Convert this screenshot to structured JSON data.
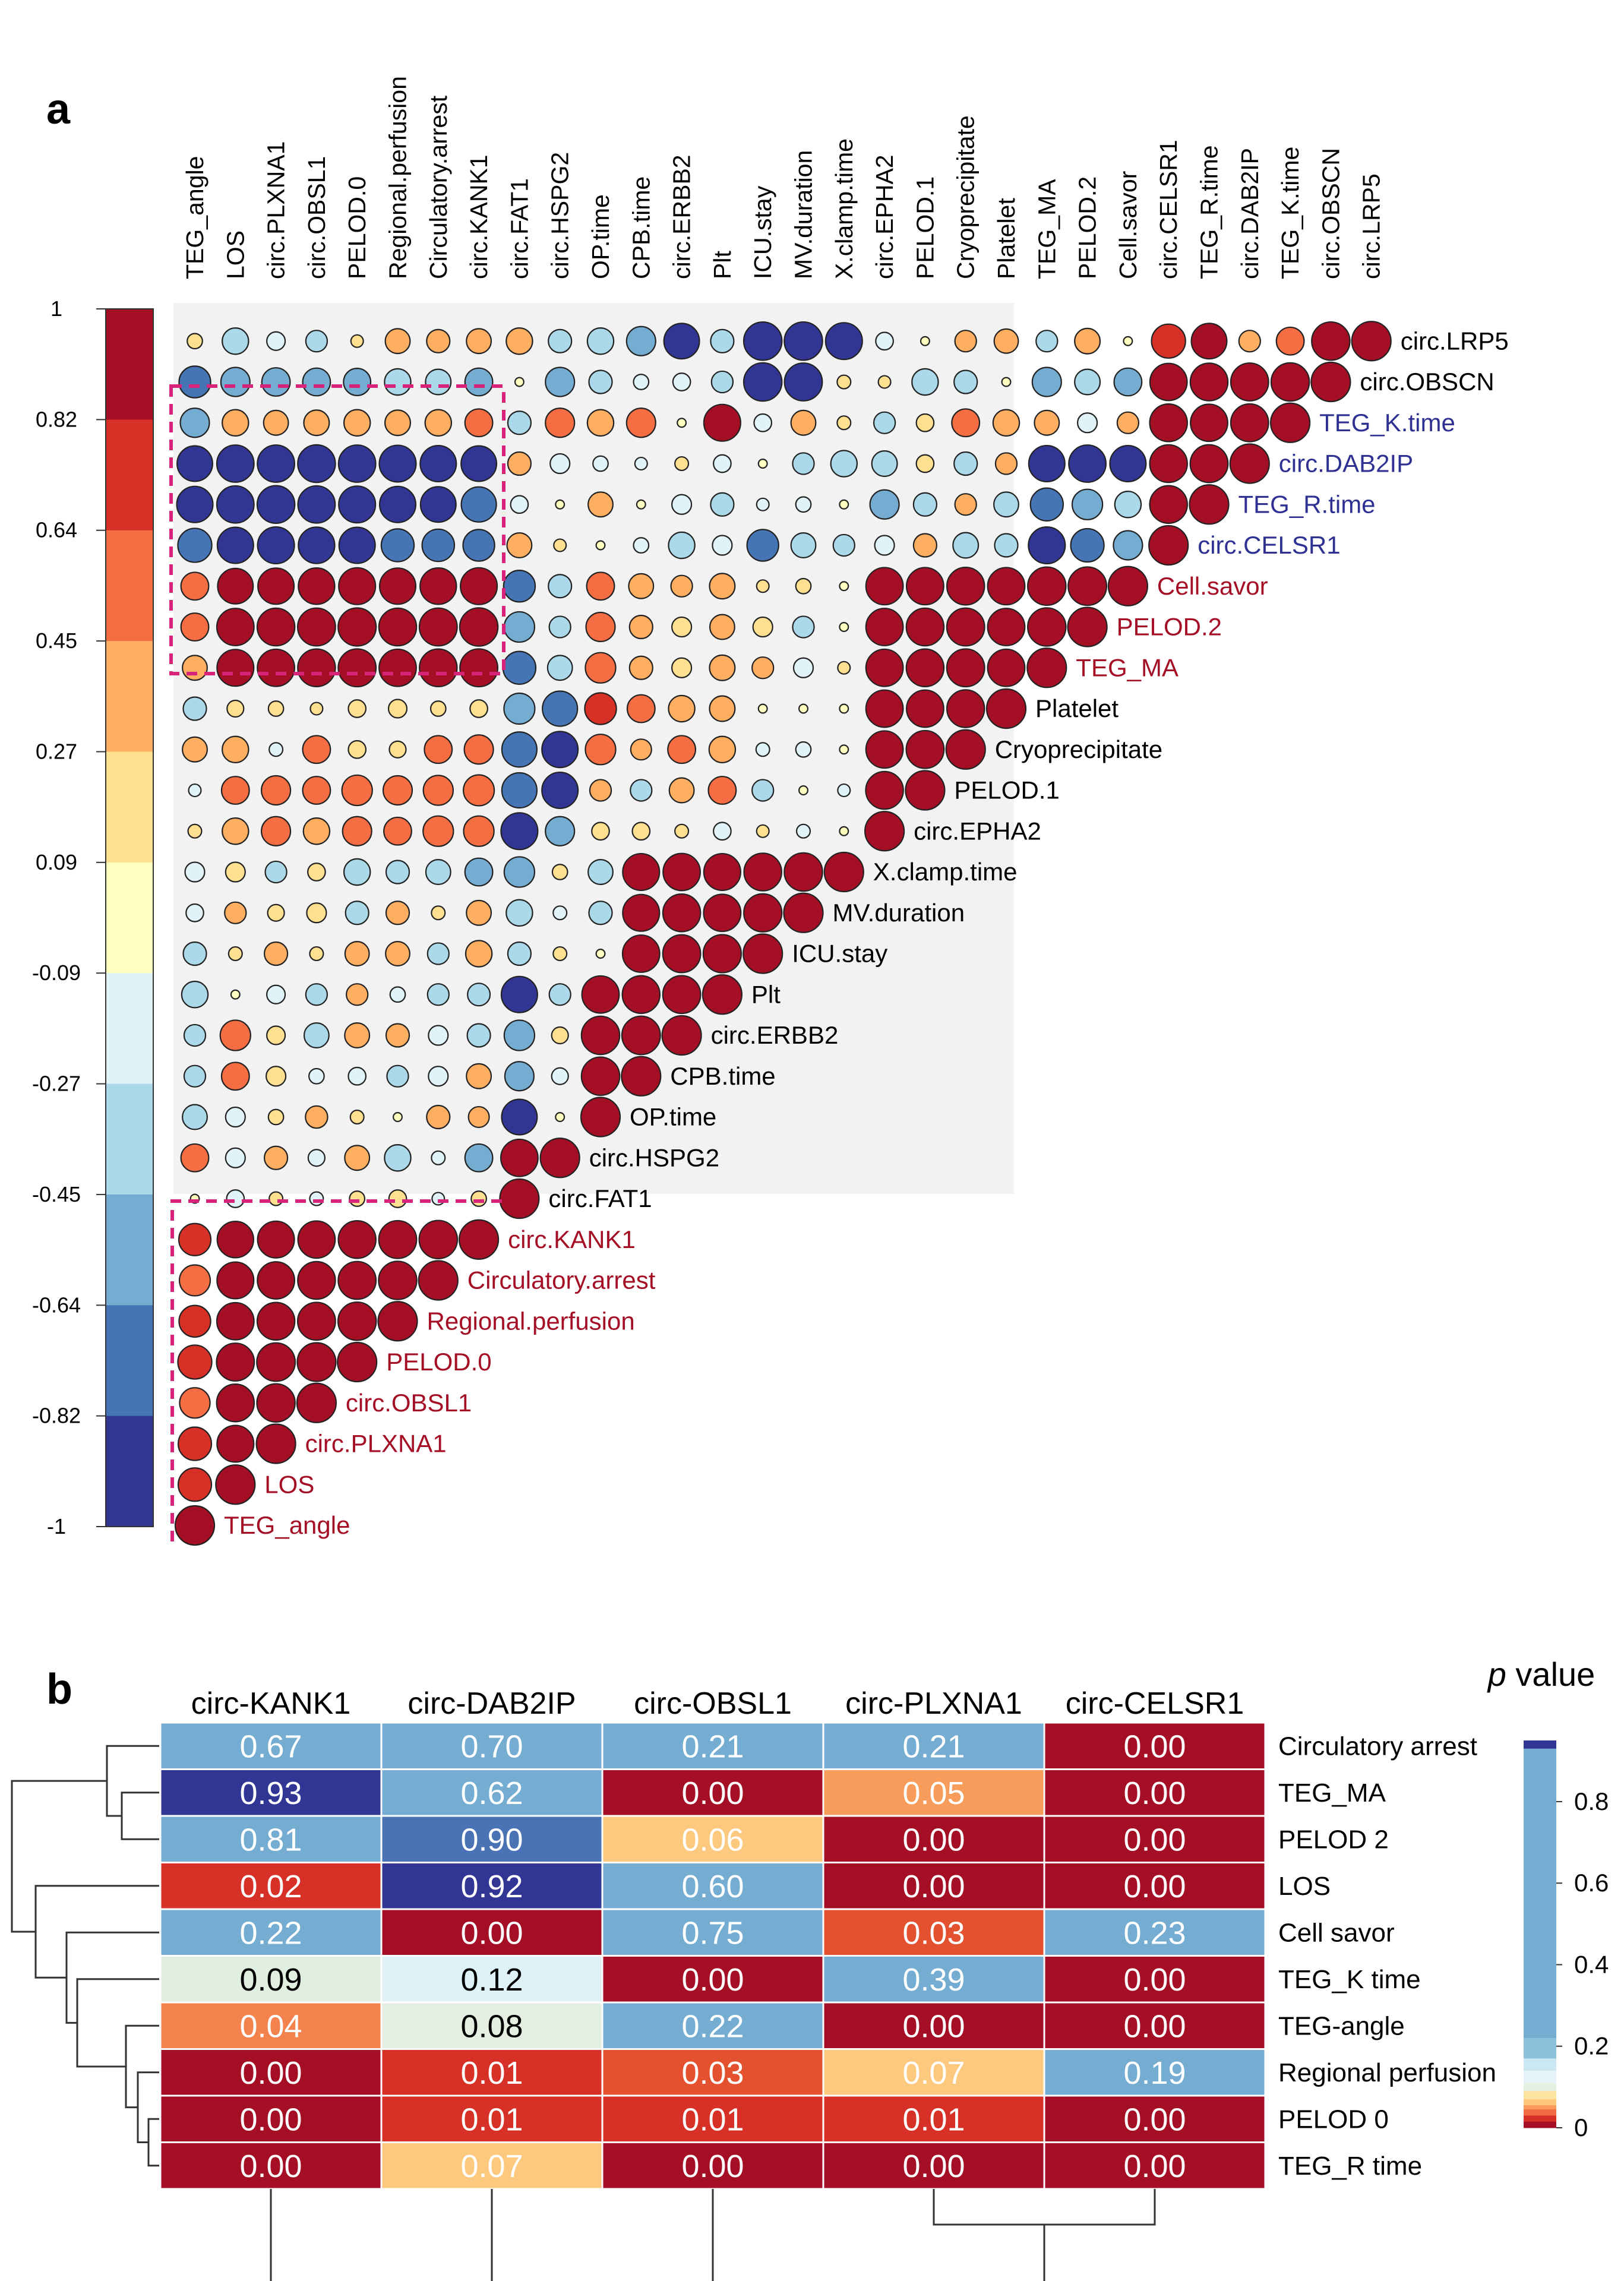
{
  "panel_labels": {
    "a": "a",
    "b": "b"
  },
  "chart_data": [
    {
      "type": "heatmap",
      "panel": "a",
      "title": "",
      "variables": [
        "TEG_angle",
        "LOS",
        "circ.PLXNA1",
        "circ.OBSL1",
        "PELOD.0",
        "Regional.perfusion",
        "Circulatory.arrest",
        "circ.KANK1",
        "circ.FAT1",
        "circ.HSPG2",
        "OP.time",
        "CPB.time",
        "circ.ERBB2",
        "Plt",
        "ICU.stay",
        "MV.duration",
        "X.clamp.time",
        "circ.EPHA2",
        "PELOD.1",
        "Cryoprecipitate",
        "Platelet",
        "TEG_MA",
        "PELOD.2",
        "Cell.savor",
        "circ.CELSR1",
        "TEG_R.time",
        "circ.DAB2IP",
        "TEG_K.time",
        "circ.OBSCN",
        "circ.LRP5"
      ],
      "highlight_labels": {
        "blue": [
          "TEG_K.time",
          "circ.DAB2IP",
          "TEG_R.time",
          "circ.CELSR1"
        ],
        "red": [
          "Cell.savor",
          "PELOD.2",
          "TEG_MA",
          "circ.KANK1",
          "Circulatory.arrest",
          "Regional.perfusion",
          "PELOD.0",
          "circ.OBSL1",
          "circ.PLXNA1",
          "LOS",
          "TEG_angle"
        ]
      },
      "colorbar_ticks": [
        "1",
        "0.82",
        "0.64",
        "0.45",
        "0.27",
        "0.09",
        "-0.09",
        "-0.27",
        "-0.45",
        "-0.64",
        "-0.82",
        "-1"
      ],
      "colorbar_colors": [
        "#a50f26",
        "#d73027",
        "#f46d43",
        "#fdae61",
        "#fee090",
        "#ffffbf",
        "#e0f3f8",
        "#abd9e9",
        "#74add1",
        "#4575b4",
        "#313695"
      ],
      "value_range": [
        -1,
        1
      ],
      "correlations": [
        [
          1
        ],
        [
          0.72,
          1
        ],
        [
          0.72,
          0.88,
          1
        ],
        [
          0.6,
          0.92,
          0.95,
          1
        ],
        [
          0.75,
          0.93,
          0.96,
          0.97,
          1
        ],
        [
          0.65,
          0.9,
          0.92,
          0.93,
          0.95,
          1
        ],
        [
          0.62,
          0.88,
          0.9,
          0.92,
          0.93,
          0.95,
          1
        ],
        [
          0.67,
          0.86,
          0.88,
          0.9,
          0.92,
          0.93,
          0.95,
          1
        ],
        [
          0.05,
          -0.2,
          0.12,
          -0.12,
          0.15,
          0.2,
          -0.1,
          0.15,
          1
        ],
        [
          0.5,
          -0.25,
          0.35,
          -0.18,
          0.4,
          -0.45,
          -0.12,
          -0.5,
          0.9,
          1
        ],
        [
          -0.4,
          -0.25,
          0.15,
          0.32,
          0.12,
          -0.05,
          0.35,
          0.28,
          -0.82,
          0.05,
          1
        ],
        [
          -0.3,
          0.5,
          0.25,
          -0.15,
          -0.2,
          -0.3,
          -0.25,
          0.4,
          -0.55,
          -0.18,
          0.95,
          1
        ],
        [
          -0.3,
          0.6,
          0.22,
          -0.4,
          0.4,
          0.35,
          -0.25,
          -0.35,
          -0.6,
          0.18,
          0.95,
          0.96,
          1
        ],
        [
          -0.45,
          0.05,
          -0.22,
          -0.3,
          0.3,
          -0.15,
          -0.3,
          -0.33,
          -0.85,
          -0.3,
          0.9,
          0.92,
          0.93,
          1
        ],
        [
          -0.35,
          0.12,
          0.35,
          0.12,
          0.38,
          0.38,
          -0.3,
          0.45,
          -0.35,
          0.12,
          0.05,
          0.9,
          0.93,
          0.94,
          1
        ],
        [
          -0.2,
          0.3,
          0.18,
          0.25,
          -0.35,
          0.35,
          0.12,
          0.4,
          -0.45,
          -0.12,
          -0.35,
          0.88,
          0.92,
          0.9,
          0.94,
          1
        ],
        [
          -0.25,
          0.25,
          -0.3,
          0.2,
          -0.45,
          -0.35,
          -0.4,
          -0.5,
          -0.6,
          0.15,
          -0.4,
          0.88,
          0.9,
          0.88,
          0.92,
          0.95,
          1
        ],
        [
          0.12,
          0.45,
          0.55,
          0.45,
          0.55,
          0.5,
          0.6,
          0.6,
          -0.88,
          -0.55,
          0.2,
          0.2,
          0.12,
          -0.2,
          0.1,
          -0.12,
          0.05,
          1
        ],
        [
          -0.1,
          0.5,
          0.55,
          0.5,
          0.6,
          0.55,
          0.58,
          0.62,
          -0.8,
          -0.85,
          0.3,
          -0.3,
          0.4,
          0.5,
          -0.3,
          0.05,
          -0.1,
          0.92,
          1
        ],
        [
          0.4,
          0.45,
          -0.12,
          0.5,
          0.2,
          0.18,
          0.5,
          0.55,
          -0.8,
          -0.85,
          0.6,
          0.28,
          0.5,
          0.45,
          -0.12,
          -0.15,
          0.05,
          0.9,
          0.93,
          1
        ],
        [
          -0.35,
          0.18,
          0.15,
          0.1,
          0.2,
          0.22,
          0.15,
          0.2,
          -0.62,
          -0.8,
          0.65,
          0.5,
          0.45,
          0.42,
          0.05,
          -0.05,
          0.05,
          0.9,
          0.9,
          0.92,
          1
        ],
        [
          0.4,
          0.88,
          0.9,
          0.92,
          0.93,
          0.9,
          0.92,
          0.93,
          -0.7,
          -0.4,
          0.6,
          0.35,
          0.25,
          0.42,
          0.3,
          -0.25,
          0.1,
          0.9,
          0.92,
          0.93,
          0.9,
          1
        ],
        [
          0.5,
          0.9,
          0.92,
          0.93,
          0.94,
          0.92,
          0.93,
          0.95,
          -0.6,
          -0.3,
          0.55,
          0.35,
          0.25,
          0.4,
          0.25,
          -0.3,
          0.05,
          0.9,
          0.92,
          0.93,
          0.9,
          0.95,
          1
        ],
        [
          0.5,
          0.82,
          0.85,
          0.86,
          0.88,
          0.85,
          0.86,
          0.88,
          -0.65,
          -0.35,
          0.5,
          0.4,
          0.3,
          0.42,
          0.1,
          0.15,
          0.05,
          0.9,
          0.9,
          0.92,
          0.9,
          0.95,
          0.96,
          1
        ],
        [
          -0.75,
          -0.85,
          -0.88,
          -0.86,
          -0.85,
          -0.7,
          -0.68,
          -0.65,
          0.4,
          0.1,
          0.05,
          -0.15,
          -0.45,
          -0.25,
          -0.65,
          -0.4,
          -0.3,
          -0.25,
          0.35,
          -0.42,
          -0.35,
          -0.88,
          -0.72,
          -0.55,
          1
        ],
        [
          -0.85,
          -0.9,
          -0.92,
          -0.9,
          -0.88,
          -0.85,
          -0.82,
          -0.8,
          -0.2,
          -0.05,
          0.4,
          0.05,
          -0.25,
          -0.35,
          -0.1,
          -0.15,
          0.05,
          -0.55,
          -0.35,
          0.3,
          -0.4,
          -0.7,
          -0.6,
          -0.45,
          0.92,
          1
        ],
        [
          -0.82,
          -0.9,
          -0.9,
          -0.92,
          -0.9,
          -0.88,
          -0.85,
          -0.82,
          0.35,
          -0.25,
          -0.15,
          -0.1,
          0.12,
          -0.2,
          -0.05,
          -0.3,
          -0.45,
          -0.42,
          0.2,
          -0.35,
          0.3,
          -0.85,
          -0.9,
          -0.85,
          0.92,
          0.93,
          1
        ],
        [
          -0.55,
          0.45,
          0.4,
          0.42,
          0.45,
          0.42,
          0.45,
          0.5,
          -0.35,
          0.55,
          0.45,
          0.55,
          0.05,
          0.88,
          -0.2,
          0.4,
          0.12,
          -0.3,
          0.2,
          0.5,
          0.45,
          0.4,
          -0.25,
          0.3,
          0.92,
          0.9,
          0.93,
          1
        ],
        [
          -0.65,
          -0.55,
          -0.52,
          -0.5,
          -0.48,
          -0.45,
          -0.42,
          -0.5,
          0.05,
          -0.55,
          -0.35,
          -0.15,
          -0.2,
          -0.3,
          -0.95,
          -0.93,
          0.12,
          0.1,
          -0.45,
          -0.35,
          0.05,
          -0.55,
          -0.42,
          -0.5,
          0.9,
          0.92,
          0.93,
          0.95,
          1
        ],
        [
          0.15,
          -0.45,
          -0.22,
          -0.3,
          0.1,
          0.4,
          0.35,
          0.4,
          0.45,
          -0.35,
          -0.45,
          -0.55,
          -0.82,
          -0.35,
          -0.95,
          -0.95,
          -0.88,
          -0.2,
          0.05,
          0.3,
          0.38,
          -0.3,
          0.42,
          0.05,
          0.75,
          0.82,
          0.3,
          0.5,
          0.95,
          1
        ]
      ]
    },
    {
      "type": "heatmap",
      "panel": "b",
      "title": "",
      "columns": [
        "circ-KANK1",
        "circ-DAB2IP",
        "circ-OBSL1",
        "circ-PLXNA1",
        "circ-CELSR1"
      ],
      "rows": [
        "Circulatory arrest",
        "TEG_MA",
        "PELOD 2",
        "LOS",
        "Cell savor",
        "TEG_K time",
        "TEG-angle",
        "Regional perfusion",
        "PELOD 0",
        "TEG_R time"
      ],
      "values": [
        [
          "0.67",
          "0.70",
          "0.21",
          "0.21",
          "0.00"
        ],
        [
          "0.93",
          "0.62",
          "0.00",
          "0.05",
          "0.00"
        ],
        [
          "0.81",
          "0.90",
          "0.06",
          "0.00",
          "0.00"
        ],
        [
          "0.02",
          "0.92",
          "0.60",
          "0.00",
          "0.00"
        ],
        [
          "0.22",
          "0.00",
          "0.75",
          "0.03",
          "0.23"
        ],
        [
          "0.09",
          "0.12",
          "0.00",
          "0.39",
          "0.00"
        ],
        [
          "0.04",
          "0.08",
          "0.22",
          "0.00",
          "0.00"
        ],
        [
          "0.00",
          "0.01",
          "0.03",
          "0.07",
          "0.19"
        ],
        [
          "0.00",
          "0.01",
          "0.01",
          "0.01",
          "0.00"
        ],
        [
          "0.00",
          "0.07",
          "0.00",
          "0.00",
          "0.00"
        ]
      ],
      "legend": {
        "title_italic": "p",
        "title_rest": " value",
        "ticks": [
          "0.8",
          "0.6",
          "0.4",
          "0.2",
          "0"
        ],
        "tick_values": [
          0.8,
          0.6,
          0.4,
          0.2,
          0
        ],
        "range": [
          0,
          0.95
        ]
      },
      "row_dendrogram": true,
      "column_dendrogram": true
    }
  ]
}
